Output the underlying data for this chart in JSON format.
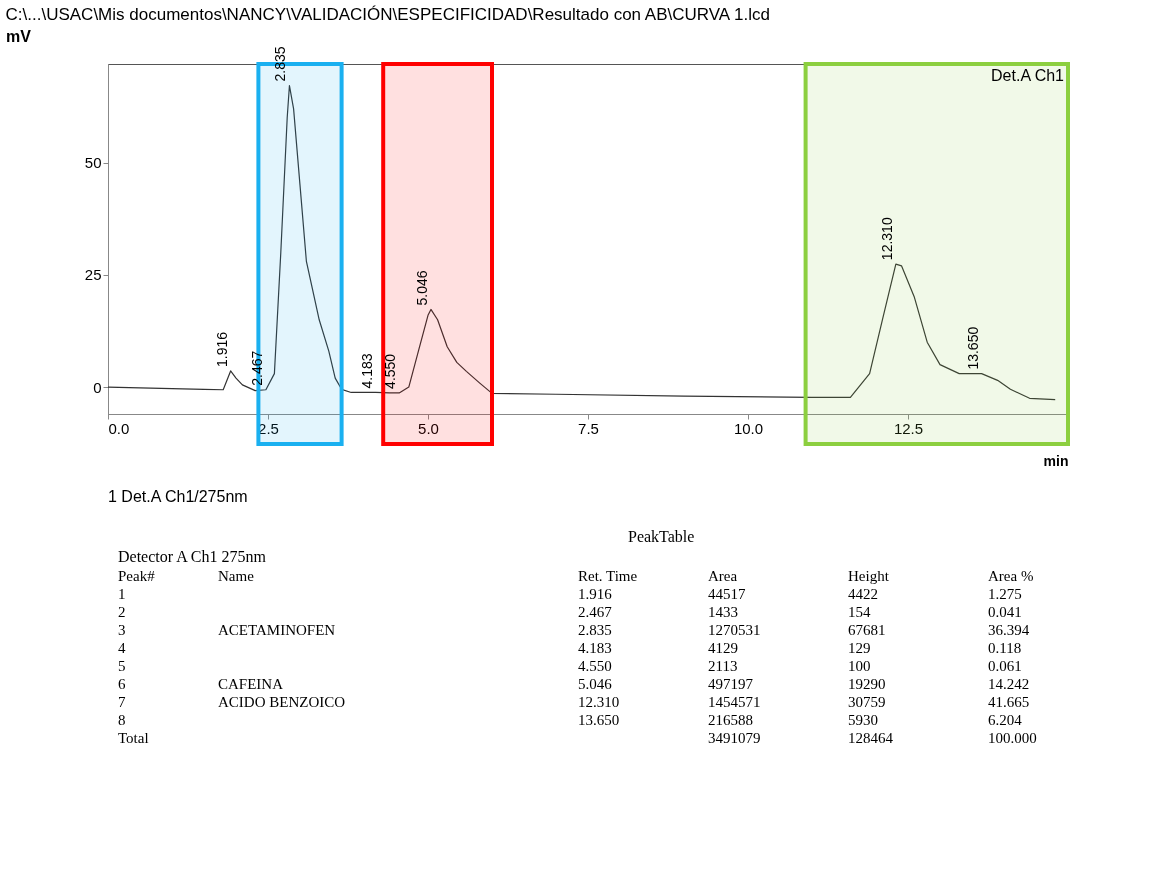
{
  "chart_data": {
    "type": "line",
    "title": "C:\\...\\USAC\\Mis documentos\\NANCY\\VALIDACIÓN\\ESPECIFICIDAD\\Resultado con AB\\CURVA 1.lcd",
    "xlabel": "min",
    "ylabel": "mV",
    "series": [
      {
        "color": "#333333",
        "x": [
          0,
          1.5,
          1.8,
          1.916,
          2.0,
          2.1,
          2.3,
          2.467,
          2.6,
          2.7,
          2.8,
          2.835,
          2.9,
          3.0,
          3.1,
          3.3,
          3.45,
          3.55,
          3.65,
          3.8,
          4.183,
          4.4,
          4.55,
          4.7,
          4.85,
          5.0,
          5.046,
          5.15,
          5.3,
          5.45,
          5.6,
          5.8,
          6.0,
          7,
          9,
          11,
          11.6,
          11.9,
          12.1,
          12.31,
          12.4,
          12.6,
          12.8,
          13.0,
          13.3,
          13.65,
          13.9,
          14.1,
          14.4,
          14.8
        ],
        "values": [
          0,
          -0.5,
          -0.6,
          3.6,
          2.0,
          0.5,
          -0.8,
          -0.6,
          3,
          30,
          60,
          67.2,
          62,
          45,
          28,
          15,
          8,
          2,
          -0.5,
          -1.2,
          -1.2,
          -1.3,
          -1.3,
          0,
          8,
          16,
          17.3,
          15,
          9,
          5.5,
          3.5,
          1,
          -1.4,
          -1.6,
          -2,
          -2.3,
          -2.3,
          3,
          15,
          27.4,
          27,
          20,
          10,
          5,
          3,
          3.0,
          1.5,
          -0.5,
          -2.5,
          -2.8
        ]
      }
    ],
    "xlim": [
      0,
      15
    ],
    "ylim": [
      -6,
      72
    ],
    "xticks": [
      {
        "value": 0,
        "label": "0.0"
      },
      2.5,
      {
        "value": 5,
        "label": "5.0"
      },
      7.5,
      {
        "value": 10,
        "label": "10.0"
      },
      12.5
    ],
    "yticks": [
      0,
      25,
      50
    ],
    "grid": false,
    "bands": [
      {
        "axis": "x",
        "from": 2.35,
        "to": 3.65,
        "color": "#1ab0f0"
      },
      {
        "axis": "x",
        "from": 4.3,
        "to": 6.0,
        "color": "#ff0000"
      },
      {
        "axis": "x",
        "from": 10.9,
        "to": 15.0,
        "color": "#8ccf3f"
      }
    ],
    "annotations": [
      {
        "text": "1.916",
        "x": 1.916,
        "y": 3.6
      },
      {
        "text": "2.467",
        "x": 2.467,
        "y": -0.6
      },
      {
        "text": "2.835",
        "x": 2.835,
        "y": 67.2
      },
      {
        "text": "4.183",
        "x": 4.183,
        "y": -1.2
      },
      {
        "text": "4.550",
        "x": 4.55,
        "y": -1.3
      },
      {
        "text": "5.046",
        "x": 5.046,
        "y": 17.3
      },
      {
        "text": "12.310",
        "x": 12.31,
        "y": 27.4
      },
      {
        "text": "13.650",
        "x": 13.65,
        "y": 3.0
      },
      "Det.A Ch1",
      "1 Det.A Ch1/275nm",
      "PeakTable",
      "Detector A Ch1 275nm",
      "Peak#\tName\tRet. Time\tArea\tHeight\tArea %",
      "1\t\t1.916\t44517\t4422\t1.275",
      "2\t\t2.467\t1433\t154\t0.041",
      "3\tACETAMINOFEN\t2.835\t1270531\t67681\t36.394",
      "4\t\t4.183\t4129\t129\t0.118",
      "5\t\t4.550\t2113\t100\t0.061",
      "6\tCAFEINA\t5.046\t497197\t19290\t14.242",
      "7\tACIDO BENZOICO\t12.310\t1454571\t30759\t41.665",
      "8\t\t13.650\t216588\t5930\t6.204",
      "Total\t\t\t3491079\t128464\t100.000"
    ]
  }
}
